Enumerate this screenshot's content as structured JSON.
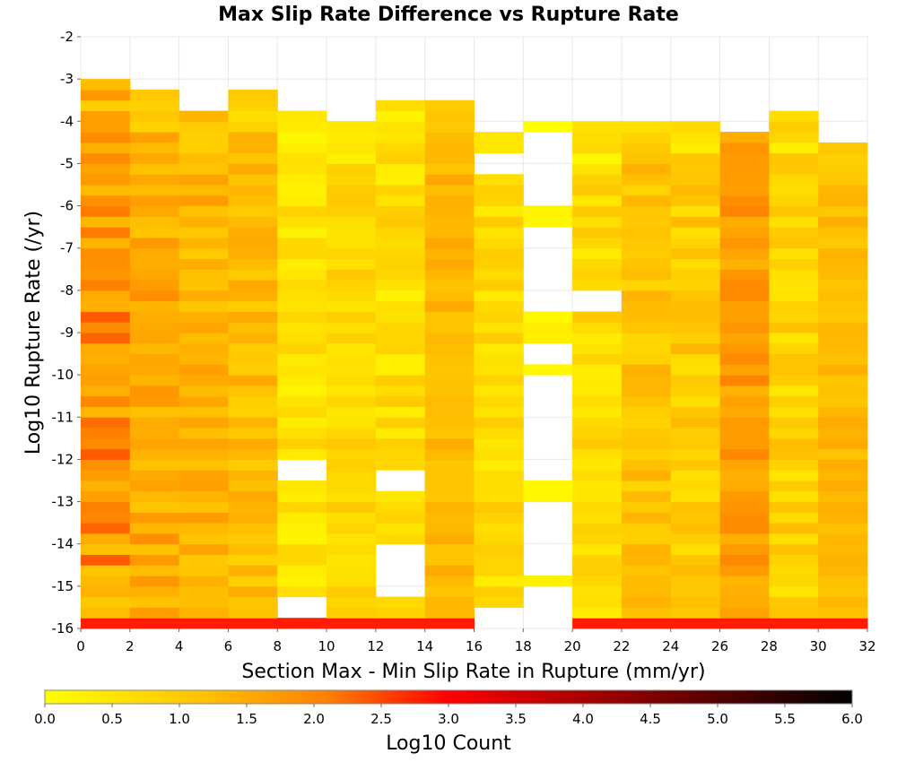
{
  "chart_data": {
    "type": "heatmap",
    "title": "Max Slip Rate Difference vs Rupture Rate",
    "xlabel": "Section Max - Min Slip Rate in Rupture (mm/yr)",
    "ylabel": "Log10 Rupture Rate (/yr)",
    "xlim": [
      0,
      32
    ],
    "ylim": [
      -16,
      -2
    ],
    "x_ticks": [
      "0",
      "2",
      "4",
      "6",
      "8",
      "10",
      "12",
      "14",
      "16",
      "18",
      "20",
      "22",
      "24",
      "26",
      "28",
      "30",
      "32"
    ],
    "y_ticks": [
      "-2",
      "-3",
      "-4",
      "-5",
      "-6",
      "-7",
      "-8",
      "-9",
      "-10",
      "-11",
      "-12",
      "-13",
      "-14",
      "-15",
      "-16"
    ],
    "x_bin_width": 2,
    "y_bin_height": 0.25,
    "grid": true,
    "colorbar": {
      "label": "Log10 Count",
      "min": 0,
      "max": 6,
      "ticks": [
        "0.0",
        "0.5",
        "1.0",
        "1.5",
        "2.0",
        "2.5",
        "3.0",
        "3.5",
        "4.0",
        "4.5",
        "5.0",
        "5.5",
        "6.0"
      ],
      "colors": [
        "#ffff00",
        "#ffc000",
        "#ff8000",
        "#ff0000",
        "#800000",
        "#000000"
      ]
    },
    "columns": [
      {
        "x": 1,
        "top": -3.0,
        "base": 1.7,
        "amp": 0.7,
        "bottom": 2.8,
        "holes": []
      },
      {
        "x": 3,
        "top": -3.25,
        "base": 1.5,
        "amp": 0.4,
        "bottom": 2.8,
        "holes": []
      },
      {
        "x": 5,
        "top": -3.75,
        "base": 1.35,
        "amp": 0.35,
        "bottom": 2.8,
        "holes": []
      },
      {
        "x": 7,
        "top": -3.25,
        "base": 1.2,
        "amp": 0.35,
        "bottom": 2.8,
        "holes": []
      },
      {
        "x": 9,
        "top": -3.75,
        "base": 0.55,
        "amp": 0.35,
        "bottom": 2.8,
        "holes": [
          -12.25,
          -15.5
        ]
      },
      {
        "x": 11,
        "top": -4.0,
        "base": 0.75,
        "amp": 0.3,
        "bottom": 2.8,
        "holes": []
      },
      {
        "x": 13,
        "top": -3.5,
        "base": 0.65,
        "amp": 0.4,
        "bottom": 2.8,
        "holes": [
          -12.5,
          -14.25,
          -14.5,
          -15.0
        ]
      },
      {
        "x": 15,
        "top": -3.5,
        "base": 1.3,
        "amp": 0.25,
        "bottom": 2.8,
        "holes": []
      },
      {
        "x": 17,
        "top": -4.25,
        "base": 0.7,
        "amp": 0.35,
        "bottom": 3.0,
        "holes": [
          -5.0,
          -15.75
        ]
      },
      {
        "x": 19,
        "top": -4.0,
        "base": 0.3,
        "amp": 0.2,
        "bottom": 2.9,
        "holes": [
          -4.5,
          -4.75,
          -5.0,
          -5.5,
          -5.75,
          -6.75,
          -7.25,
          -7.5,
          -7.75,
          -8.25,
          -9.5,
          -10.25,
          -10.75,
          -11.0,
          -11.25,
          -11.5,
          -11.75,
          -12.0,
          -12.25,
          -13.25,
          -13.5,
          -14.0,
          -14.5,
          -15.25,
          -15.5,
          -15.75
        ]
      },
      {
        "x": 21,
        "top": -4.0,
        "base": 0.7,
        "amp": 0.35,
        "bottom": 2.8,
        "holes": [
          -8.25
        ]
      },
      {
        "x": 23,
        "top": -4.0,
        "base": 1.1,
        "amp": 0.35,
        "bottom": 2.8,
        "holes": []
      },
      {
        "x": 25,
        "top": -4.0,
        "base": 0.95,
        "amp": 0.4,
        "bottom": 2.8,
        "holes": []
      },
      {
        "x": 27,
        "top": -4.25,
        "base": 1.7,
        "amp": 0.35,
        "bottom": 2.8,
        "holes": []
      },
      {
        "x": 29,
        "top": -3.75,
        "base": 0.85,
        "amp": 0.4,
        "bottom": 2.8,
        "holes": []
      },
      {
        "x": 31,
        "top": -4.5,
        "base": 1.25,
        "amp": 0.25,
        "bottom": 2.8,
        "holes": []
      }
    ]
  }
}
